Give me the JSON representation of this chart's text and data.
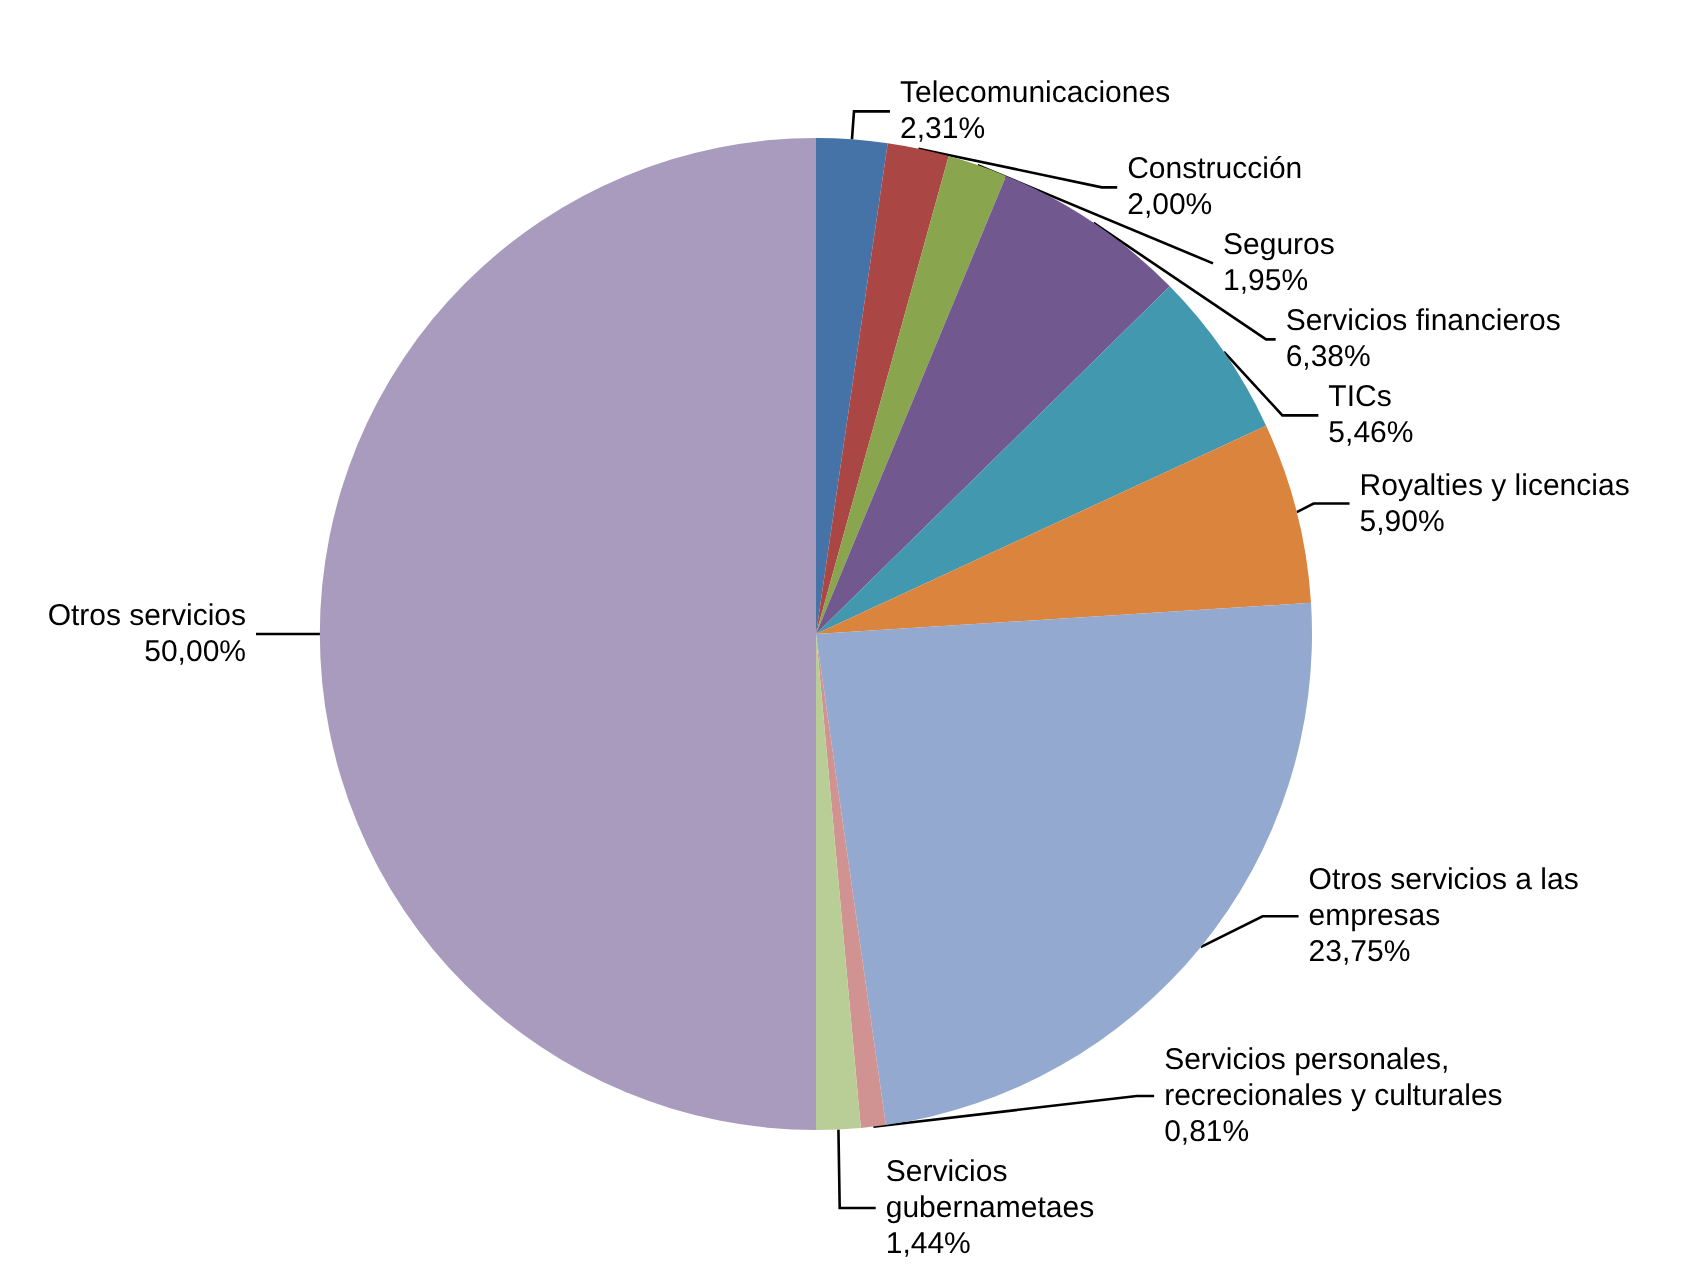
{
  "chart_data": {
    "type": "pie",
    "categories": [
      "Telecomunicaciones",
      "Construcción",
      "Seguros",
      "Servicios financieros",
      "TICs",
      "Royalties y licencias",
      "Otros servicios a las empresas",
      "Servicios personales, recrecionales y culturales",
      "Servicios gubernametaes",
      "Otros servicios"
    ],
    "values": [
      2.31,
      2.0,
      1.95,
      6.38,
      5.46,
      5.9,
      23.75,
      0.81,
      1.44,
      50.0
    ],
    "value_labels": [
      "2,31%",
      "2,00%",
      "1,95%",
      "6,38%",
      "5,46%",
      "5,90%",
      "23,75%",
      "0,81%",
      "1,44%",
      "50,00%"
    ],
    "colors": [
      "#4572a7",
      "#aa4643",
      "#89a54e",
      "#71588f",
      "#4198af",
      "#db843d",
      "#93a9cf",
      "#d19392",
      "#b9cd96",
      "#a99bbd"
    ],
    "legend": false
  }
}
